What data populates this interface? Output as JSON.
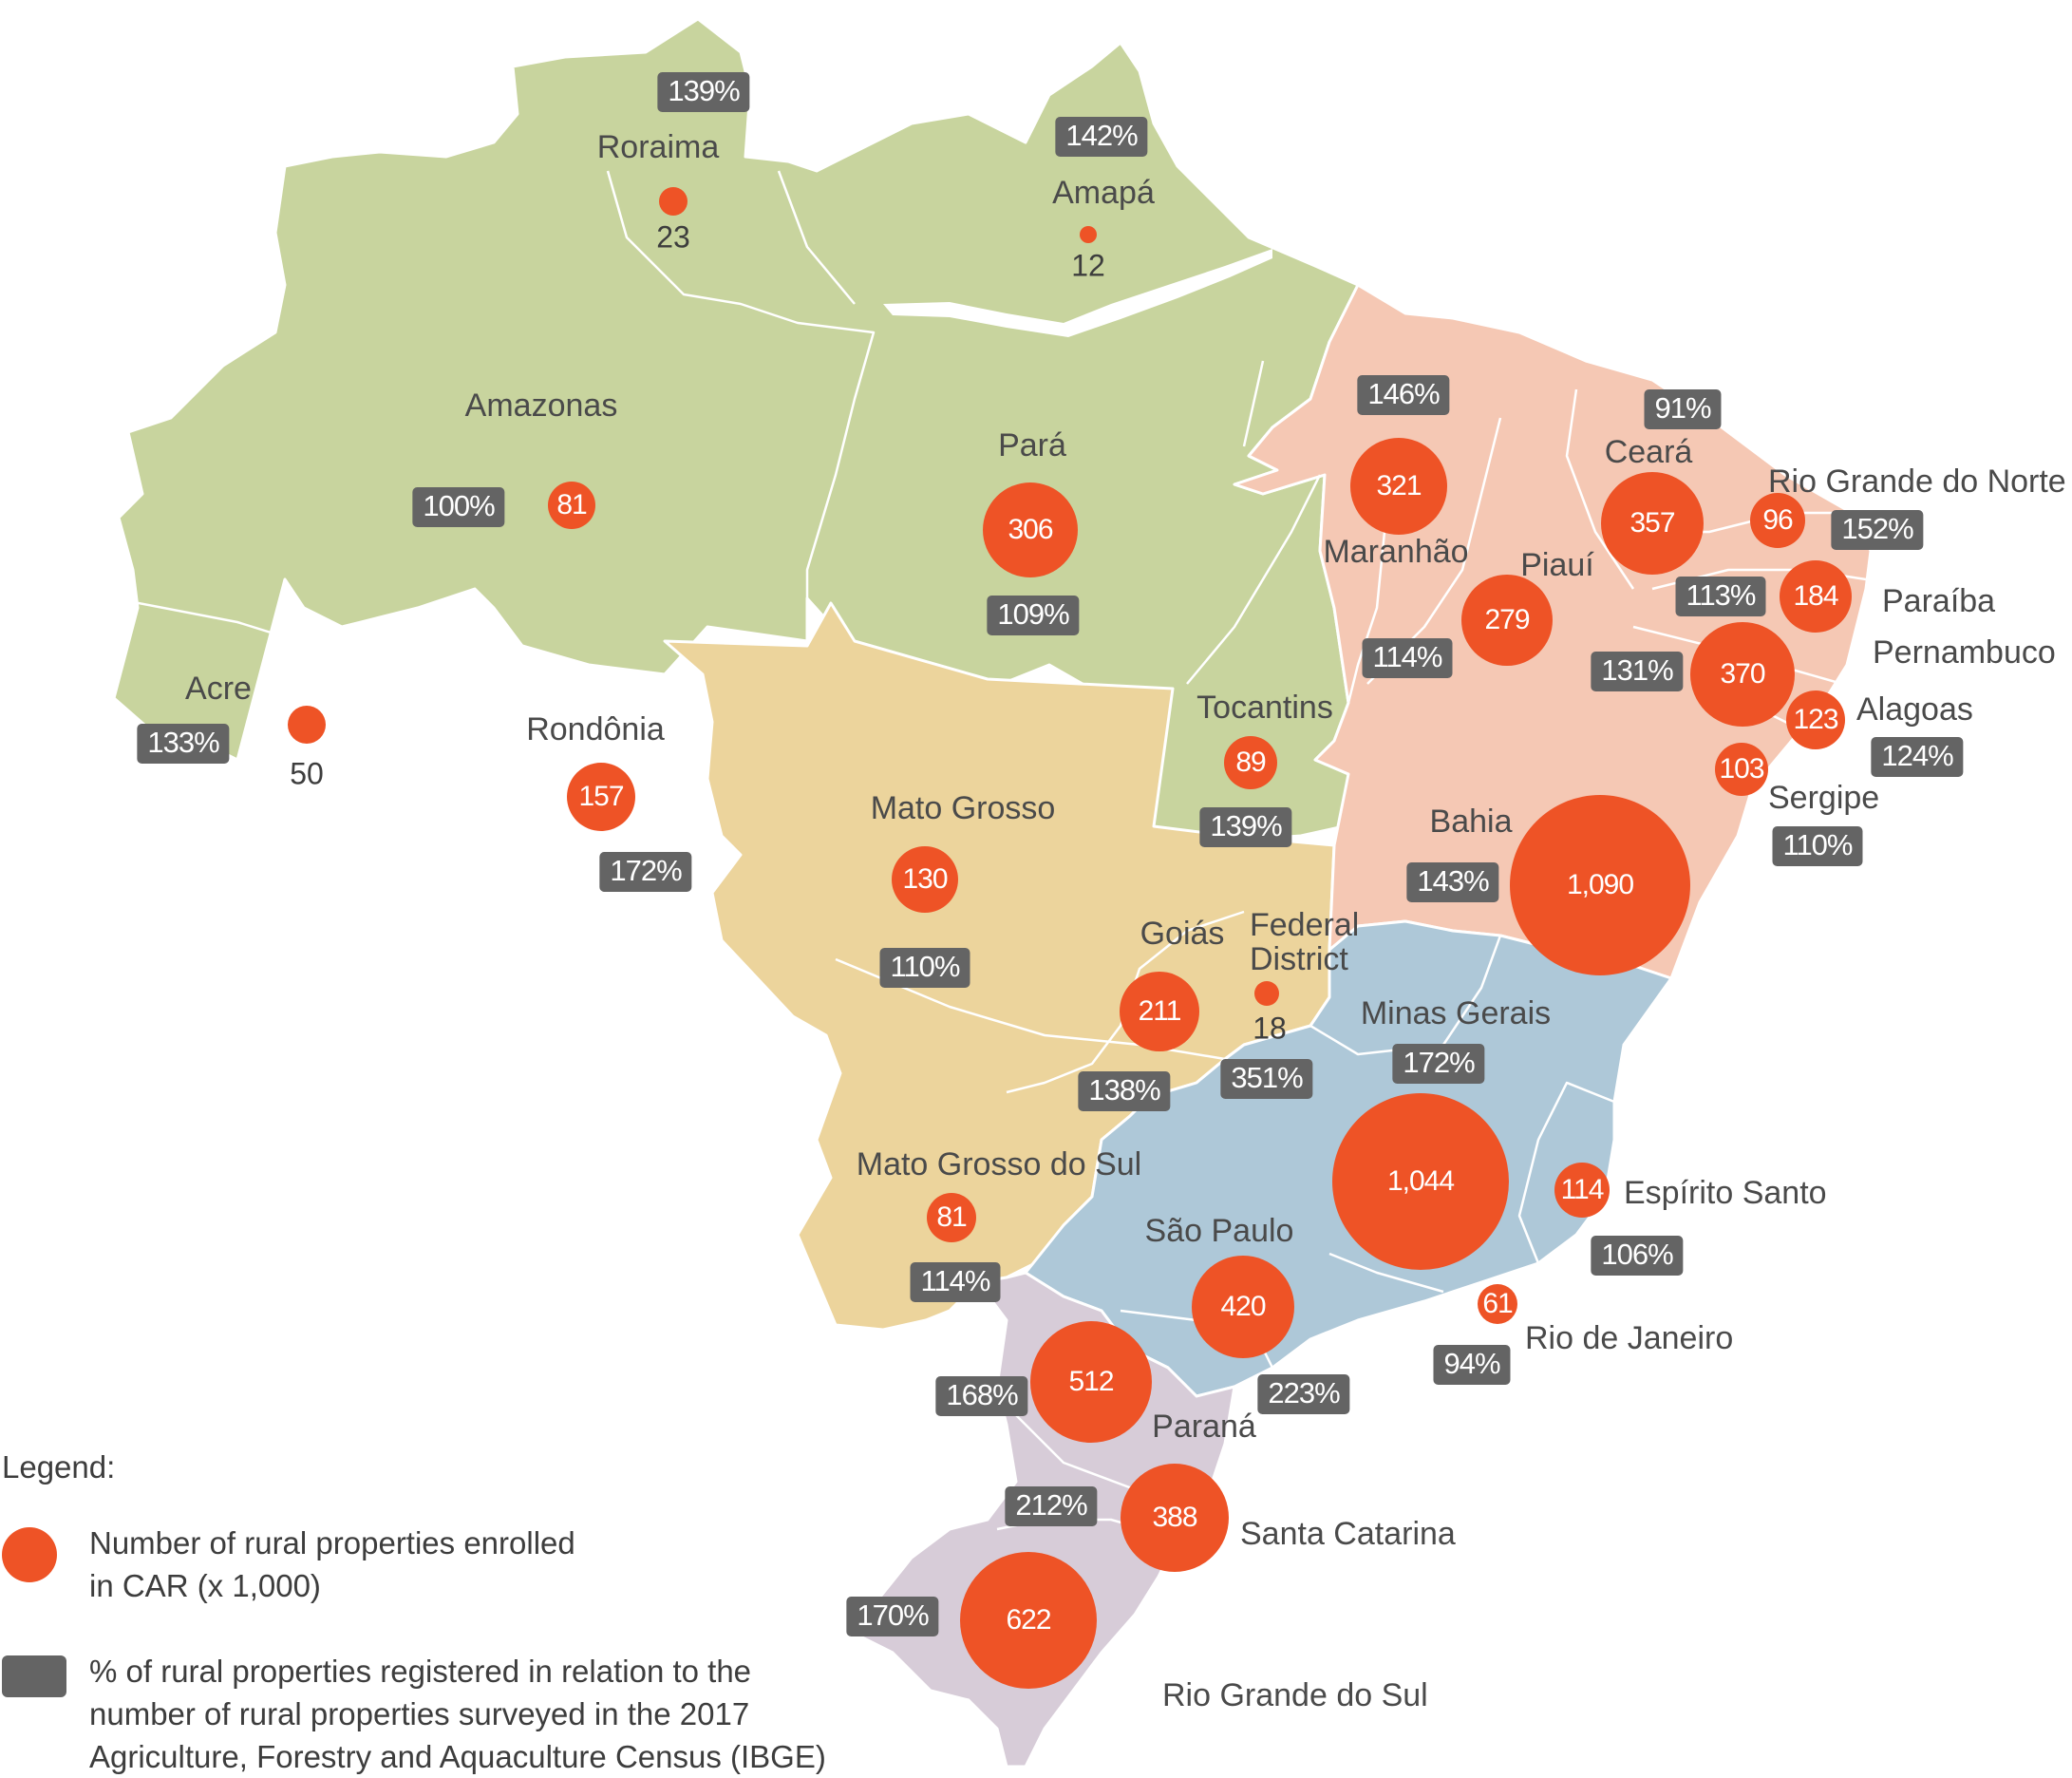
{
  "colors": {
    "north_region": "#c8d49e",
    "center_west_region": "#ecd49c",
    "northeast_region": "#f5c8b4",
    "southeast_region": "#aec8d8",
    "south_region": "#d7ccd8",
    "enrolled_bubble": "#ee5326",
    "percent_badge": "#646464",
    "border": "#ffffff"
  },
  "states": [
    {
      "name": "Roraima",
      "enrolled": "23",
      "percent": "139%"
    },
    {
      "name": "Amapá",
      "enrolled": "12",
      "percent": "142%"
    },
    {
      "name": "Amazonas",
      "enrolled": "81",
      "percent": "100%"
    },
    {
      "name": "Pará",
      "enrolled": "306",
      "percent": "109%"
    },
    {
      "name": "Acre",
      "enrolled": "50",
      "percent": "133%"
    },
    {
      "name": "Rondônia",
      "enrolled": "157",
      "percent": "172%"
    },
    {
      "name": "Tocantins",
      "enrolled": "89",
      "percent": "139%"
    },
    {
      "name": "Maranhão",
      "enrolled": "321",
      "percent": "146%"
    },
    {
      "name": "Piauí",
      "enrolled": "279",
      "percent": "114%"
    },
    {
      "name": "Ceará",
      "enrolled": "357",
      "percent": "91%"
    },
    {
      "name": "Rio Grande do Norte",
      "enrolled": "96",
      "percent": "152%"
    },
    {
      "name": "Paraíba",
      "enrolled": "184",
      "percent": "113%"
    },
    {
      "name": "Pernambuco",
      "enrolled": "370",
      "percent": "131%"
    },
    {
      "name": "Alagoas",
      "enrolled": "123",
      "percent": "124%"
    },
    {
      "name": "Sergipe",
      "enrolled": "103",
      "percent": "110%"
    },
    {
      "name": "Bahia",
      "enrolled": "1,090",
      "percent": "143%"
    },
    {
      "name": "Mato Grosso",
      "enrolled": "130",
      "percent": "110%"
    },
    {
      "name": "Goiás",
      "enrolled": "211",
      "percent": "138%"
    },
    {
      "name": "Federal District",
      "enrolled": "18",
      "percent": "351%"
    },
    {
      "name": "Minas Gerais",
      "enrolled": "1,044",
      "percent": "172%"
    },
    {
      "name": "Espírito Santo",
      "enrolled": "114",
      "percent": "106%"
    },
    {
      "name": "Mato Grosso do Sul",
      "enrolled": "81",
      "percent": "114%"
    },
    {
      "name": "São Paulo",
      "enrolled": "420",
      "percent": "223%"
    },
    {
      "name": "Rio de Janeiro",
      "enrolled": "61",
      "percent": "94%"
    },
    {
      "name": "Paraná",
      "enrolled": "512",
      "percent": "168%"
    },
    {
      "name": "Santa Catarina",
      "enrolled": "388",
      "percent": "212%"
    },
    {
      "name": "Rio Grande do Sul",
      "enrolled": "622",
      "percent": "170%"
    }
  ],
  "legend": {
    "title": "Legend:",
    "bubble_text_line1": "Number of rural properties enrolled",
    "bubble_text_line2": "in CAR (x 1,000)",
    "badge_text_line1": "% of rural properties registered in relation to the",
    "badge_text_line2": "number of rural properties surveyed in the 2017",
    "badge_text_line3": "Agriculture, Forestry and Aquaculture Census (IBGE)"
  }
}
